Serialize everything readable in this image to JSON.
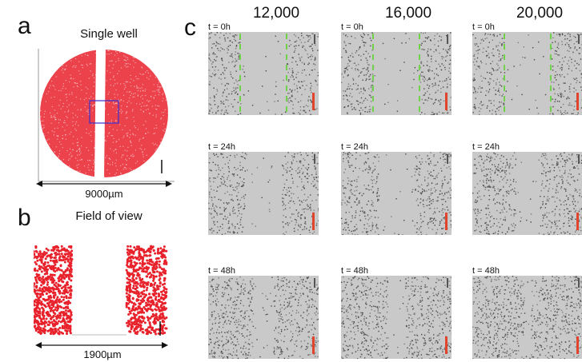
{
  "panel_a": {
    "letter": "a",
    "title": "Single well",
    "width_label": "9000µm",
    "colors": {
      "cells": "#e8212b",
      "roi": "#3a2fd0",
      "axes": "#888888"
    }
  },
  "panel_b": {
    "letter": "b",
    "title": "Field of view",
    "width_label": "1900µm",
    "colors": {
      "cells": "#e8212b"
    }
  },
  "panel_c": {
    "letter": "c",
    "columns": [
      "12,000",
      "16,000",
      "20,000"
    ],
    "rows": [
      "t = 0h",
      "t = 24h",
      "t = 48h"
    ],
    "colors": {
      "wound_edge": "#6fd24a",
      "scale_bar": "#e0442c",
      "background": "#c9c9c9"
    }
  }
}
